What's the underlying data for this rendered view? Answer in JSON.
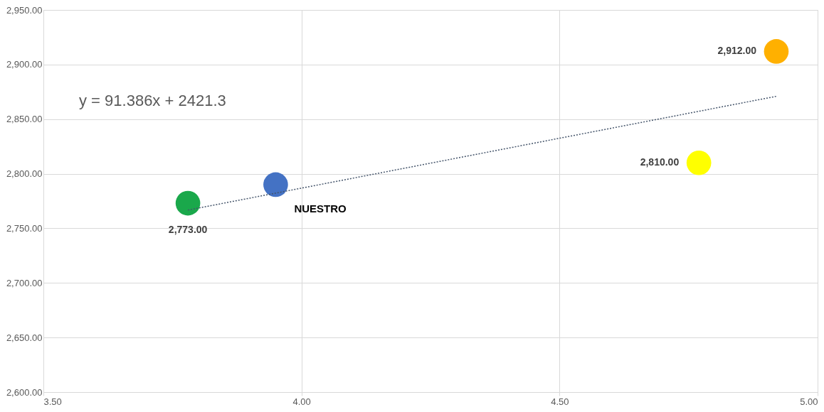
{
  "chart_data": {
    "type": "scatter",
    "x": [
      3.78,
      3.95,
      4.92,
      4.77
    ],
    "values": [
      2773,
      2790,
      2912,
      2810
    ],
    "colors": [
      "#1aa84b",
      "#4472c4",
      "#ffb000",
      "#ffff00"
    ],
    "value_labels": [
      "2,773.00",
      null,
      "2,912.00",
      "2,810.00"
    ],
    "series": [
      {
        "type": "line",
        "x": [
          3.78,
          4.92
        ],
        "values": [
          2766.7,
          2870.9
        ],
        "color": "#44546a",
        "line_style": "dotted",
        "marker": "none"
      }
    ],
    "annotations": [
      "y = 91.386x + 2421.3",
      {
        "text": "NUESTRO",
        "x": 3.95,
        "y": 2790
      }
    ],
    "xlim": [
      3.5,
      5.0
    ],
    "xticks": [
      {
        "value": 3.5,
        "label": "3.50"
      },
      {
        "value": 4.0,
        "label": "4.00"
      },
      {
        "value": 4.5,
        "label": "4.50"
      },
      {
        "value": 5.0,
        "label": "5.00"
      }
    ],
    "ylim": [
      2600,
      2950
    ],
    "yticks": [
      {
        "value": 2600,
        "label": "2,600.00"
      },
      {
        "value": 2650,
        "label": "2,650.00"
      },
      {
        "value": 2700,
        "label": "2,700.00"
      },
      {
        "value": 2750,
        "label": "2,750.00"
      },
      {
        "value": 2800,
        "label": "2,800.00"
      },
      {
        "value": 2850,
        "label": "2,850.00"
      },
      {
        "value": 2900,
        "label": "2,900.00"
      },
      {
        "value": 2950,
        "label": "2,950.00"
      }
    ],
    "grid": true,
    "marker": "circle"
  }
}
